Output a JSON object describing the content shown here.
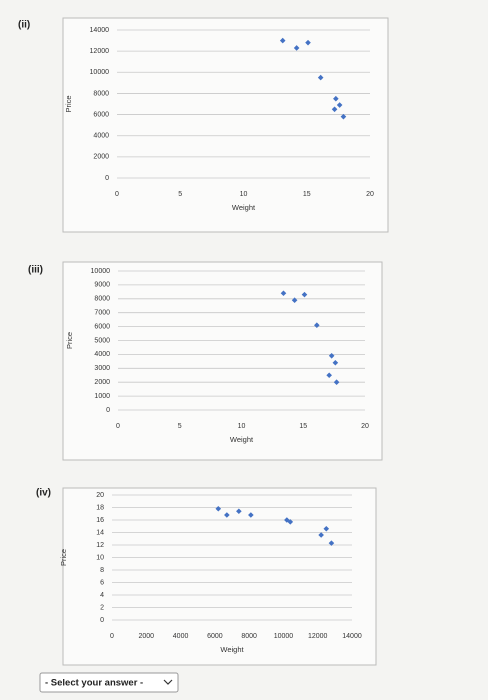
{
  "parts": [
    "(ii)",
    "(iii)",
    "(iv)"
  ],
  "select": {
    "placeholder": "- Select your answer -"
  },
  "chart_data": [
    {
      "type": "scatter",
      "x_label": "Weight",
      "y_label": "Price",
      "color": "#4472c4",
      "grid": true,
      "xlim": [
        0,
        20
      ],
      "xticks": [
        0,
        5,
        10,
        15,
        20
      ],
      "ylim": [
        0,
        14000
      ],
      "yticks": [
        0,
        2000,
        4000,
        6000,
        8000,
        10000,
        12000,
        14000
      ],
      "series": [
        {
          "x": [
            13.1,
            14.2,
            15.1,
            16.1,
            17.3,
            17.6,
            17.2,
            17.9
          ],
          "values": [
            13000,
            12300,
            12800,
            9500,
            7500,
            6900,
            6500,
            5800
          ]
        }
      ]
    },
    {
      "type": "scatter",
      "x_label": "Weight",
      "y_label": "Price",
      "color": "#4472c4",
      "grid": true,
      "xlim": [
        0,
        20
      ],
      "xticks": [
        0,
        5,
        10,
        15,
        20
      ],
      "ylim": [
        0,
        10000
      ],
      "yticks": [
        0,
        1000,
        2000,
        3000,
        4000,
        5000,
        6000,
        7000,
        8000,
        9000,
        10000
      ],
      "series": [
        {
          "x": [
            13.4,
            14.3,
            15.1,
            16.1,
            17.3,
            17.6,
            17.1,
            17.7
          ],
          "values": [
            8400,
            7900,
            8300,
            6100,
            3900,
            3400,
            2500,
            2000
          ]
        }
      ]
    },
    {
      "type": "scatter",
      "x_label": "Weight",
      "y_label": "Price",
      "color": "#4472c4",
      "grid": true,
      "xlim": [
        0,
        14000
      ],
      "xticks": [
        0,
        2000,
        4000,
        6000,
        8000,
        10000,
        12000,
        14000
      ],
      "ylim": [
        0,
        20
      ],
      "yticks": [
        0,
        2,
        4,
        6,
        8,
        10,
        12,
        14,
        16,
        18,
        20
      ],
      "series": [
        {
          "x": [
            6200,
            6700,
            7400,
            8100,
            10200,
            10400,
            12200,
            12500,
            12800
          ],
          "values": [
            17.8,
            16.8,
            17.4,
            16.8,
            16,
            15.7,
            13.6,
            14.6,
            12.3
          ]
        }
      ]
    }
  ]
}
